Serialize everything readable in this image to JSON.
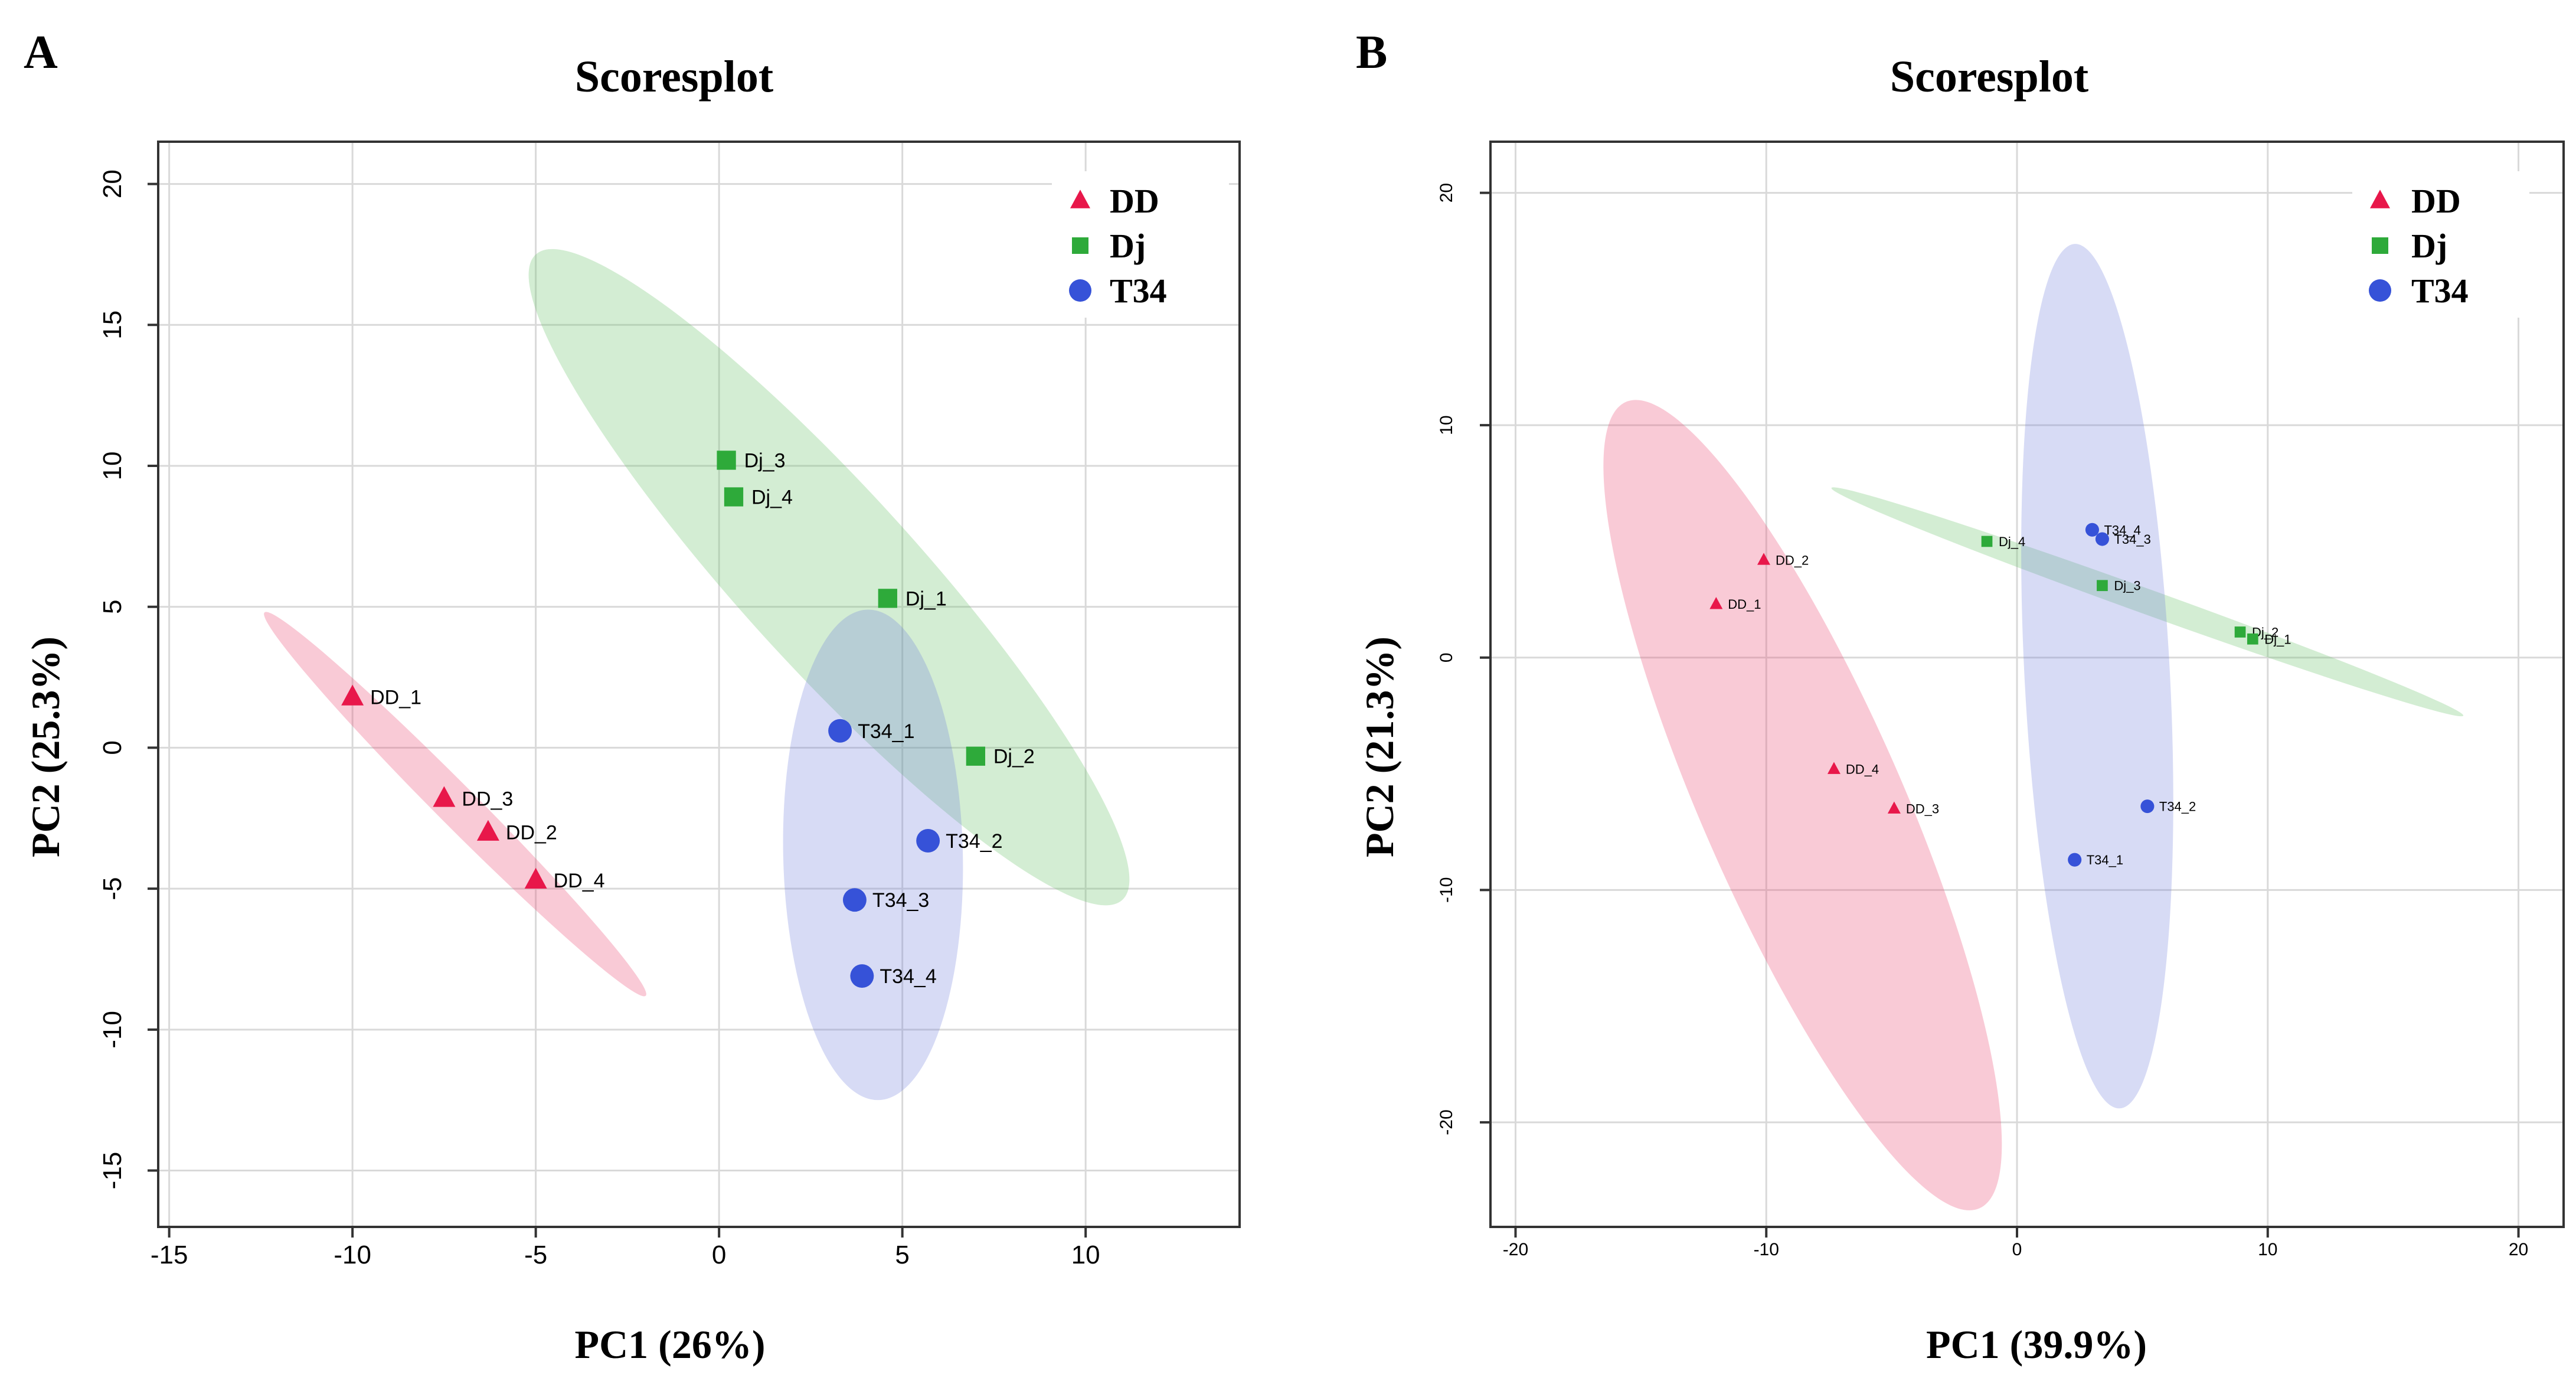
{
  "colors": {
    "DD": "#e8174a",
    "Dj": "#2eaa3a",
    "T34": "#3652d8"
  },
  "fills": {
    "DD": "rgba(236,80,120,0.30)",
    "Dj": "rgba(110,195,110,0.30)",
    "T34": "rgba(110,125,220,0.28)"
  },
  "chart_data": [
    {
      "panel": "A",
      "type": "scatter",
      "title": "Scoresplot",
      "xlabel": "PC1 (26%)",
      "ylabel": "PC2 (25.3%)",
      "xlim": [
        -15.3,
        14.2
      ],
      "ylim": [
        -17.0,
        21.5
      ],
      "xticks": [
        -15,
        -10,
        -5,
        0,
        5,
        10
      ],
      "yticks": [
        -15,
        -10,
        -5,
        0,
        5,
        10,
        15,
        20
      ],
      "grid": true,
      "legend": "top-right",
      "series": [
        {
          "name": "DD",
          "marker": "triangle",
          "points": [
            {
              "label": "DD_1",
              "x": -10.0,
              "y": 1.8
            },
            {
              "label": "DD_3",
              "x": -7.5,
              "y": -1.8
            },
            {
              "label": "DD_2",
              "x": -6.3,
              "y": -3.0
            },
            {
              "label": "DD_4",
              "x": -5.0,
              "y": -4.7
            }
          ]
        },
        {
          "name": "Dj",
          "marker": "square",
          "points": [
            {
              "label": "Dj_3",
              "x": 0.2,
              "y": 10.2
            },
            {
              "label": "Dj_4",
              "x": 0.4,
              "y": 8.9
            },
            {
              "label": "Dj_1",
              "x": 4.6,
              "y": 5.3
            },
            {
              "label": "Dj_2",
              "x": 7.0,
              "y": -0.3
            }
          ]
        },
        {
          "name": "T34",
          "marker": "circle",
          "points": [
            {
              "label": "T34_1",
              "x": 3.3,
              "y": 0.6
            },
            {
              "label": "T34_2",
              "x": 5.7,
              "y": -3.3
            },
            {
              "label": "T34_3",
              "x": 3.7,
              "y": -5.4
            },
            {
              "label": "T34_4",
              "x": 3.9,
              "y": -8.1
            }
          ]
        }
      ],
      "ellipses": [
        {
          "group": "DD",
          "endpoints": [
            [
              -12.4,
              4.8
            ],
            [
              -2.0,
              -8.8
            ]
          ],
          "minor_halfwidth": 0.55
        },
        {
          "group": "Dj",
          "endpoints": [
            [
              -5.0,
              17.5
            ],
            [
              11.0,
              -5.4
            ]
          ],
          "minor_halfwidth": 2.4
        },
        {
          "group": "T34",
          "endpoints": [
            [
              4.05,
              4.9
            ],
            [
              4.35,
              -12.5
            ]
          ],
          "minor_halfwidth": 2.45
        }
      ]
    },
    {
      "panel": "B",
      "type": "scatter",
      "title": "Scoresplot",
      "xlabel": "PC1 (39.9%)",
      "ylabel": "PC2 (21.3%)",
      "xlim": [
        -21.0,
        21.8
      ],
      "ylim": [
        -24.5,
        22.2
      ],
      "xticks": [
        -20,
        -10,
        0,
        10,
        20
      ],
      "yticks": [
        -20,
        -10,
        0,
        10,
        20
      ],
      "grid": true,
      "legend": "top-right",
      "series": [
        {
          "name": "DD",
          "marker": "triangle",
          "points": [
            {
              "label": "DD_2",
              "x": -10.1,
              "y": 4.2
            },
            {
              "label": "DD_1",
              "x": -12.0,
              "y": 2.3
            },
            {
              "label": "DD_4",
              "x": -7.3,
              "y": -4.8
            },
            {
              "label": "DD_3",
              "x": -4.9,
              "y": -6.5
            }
          ]
        },
        {
          "name": "Dj",
          "marker": "square",
          "points": [
            {
              "label": "Dj_4",
              "x": -1.2,
              "y": 5.0
            },
            {
              "label": "Dj_3",
              "x": 3.4,
              "y": 3.1
            },
            {
              "label": "Dj_2",
              "x": 8.9,
              "y": 1.1
            },
            {
              "label": "Dj_1",
              "x": 9.4,
              "y": 0.8
            }
          ]
        },
        {
          "name": "T34",
          "marker": "circle",
          "points": [
            {
              "label": "T34_4",
              "x": 3.0,
              "y": 5.5
            },
            {
              "label": "T34_3",
              "x": 3.4,
              "y": 5.1
            },
            {
              "label": "T34_2",
              "x": 5.2,
              "y": -6.4
            },
            {
              "label": "T34_1",
              "x": 2.3,
              "y": -8.7
            }
          ]
        }
      ],
      "ellipses": [
        {
          "group": "DD",
          "endpoints": [
            [
              -15.6,
              11.0
            ],
            [
              -1.5,
              -23.7
            ]
          ],
          "minor_halfwidth": 4.0
        },
        {
          "group": "Dj",
          "endpoints": [
            [
              -7.4,
              7.3
            ],
            [
              17.8,
              -2.5
            ]
          ],
          "minor_halfwidth": 0.5
        },
        {
          "group": "T34",
          "endpoints": [
            [
              2.3,
              17.8
            ],
            [
              4.1,
              -19.4
            ]
          ],
          "minor_halfwidth": 2.9
        }
      ]
    }
  ]
}
